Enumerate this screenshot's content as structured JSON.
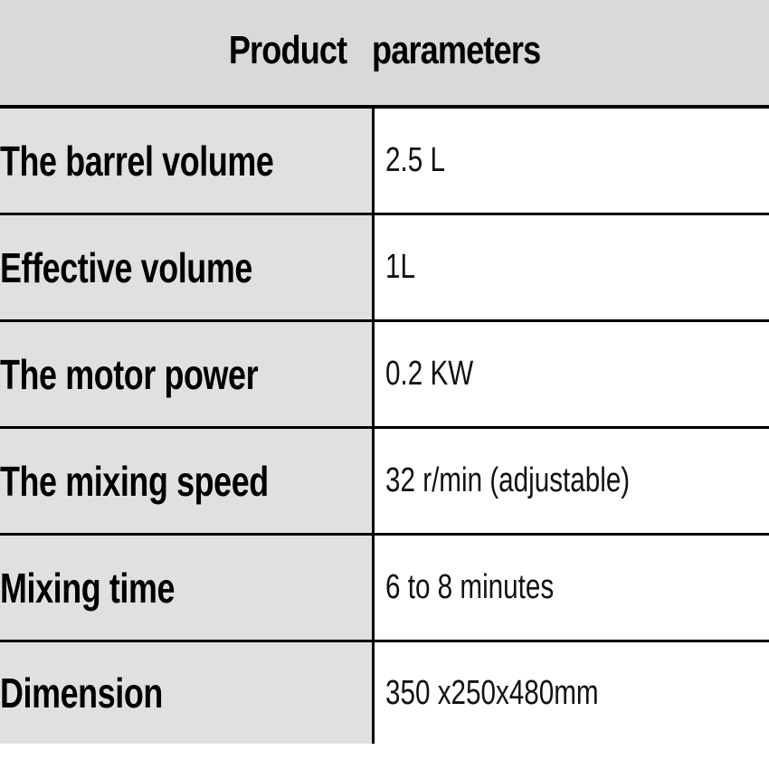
{
  "title": "Product   parameters",
  "rows": [
    {
      "label": "The barrel volume",
      "value": "2.5 L"
    },
    {
      "label": "Effective volume",
      "value": "1L"
    },
    {
      "label": "The motor power",
      "value": "0.2 KW"
    },
    {
      "label": "The mixing speed",
      "value": "32 r/min (adjustable)"
    },
    {
      "label": "Mixing time",
      "value": "6 to 8 minutes"
    },
    {
      "label": "Dimension",
      "value": "350 x250x480mm"
    }
  ],
  "colors": {
    "header_background": "#d9d9d9",
    "label_background": "#e0e0e0",
    "value_background": "#ffffff",
    "border": "#000000"
  }
}
